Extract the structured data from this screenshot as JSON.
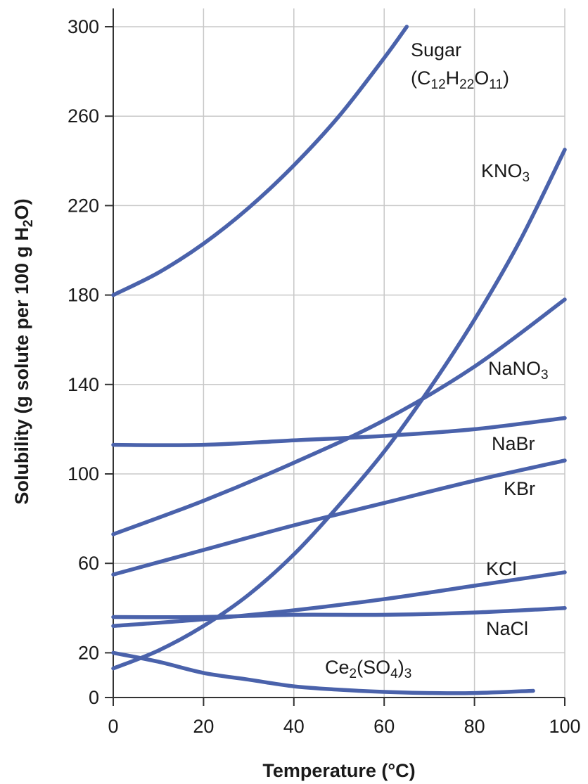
{
  "chart_data": {
    "type": "line",
    "title": "",
    "xlabel": "Temperature (°C)",
    "ylabel": "Solubility (g solute per 100 g H2O)",
    "ylabel_parts": [
      {
        "text": "Solubility (g solute per 100 g H",
        "sub": false
      },
      {
        "text": "2",
        "sub": true
      },
      {
        "text": "O)",
        "sub": false
      }
    ],
    "xlim": [
      0,
      100
    ],
    "ylim": [
      0,
      308
    ],
    "xticks": [
      0,
      20,
      40,
      60,
      80,
      100
    ],
    "yticks": [
      0,
      20,
      60,
      100,
      140,
      180,
      220,
      260,
      300
    ],
    "grid": true,
    "line_color": "#4a62ab",
    "series": [
      {
        "name": "Sugar (C12H22O11)",
        "label_lines": [
          [
            {
              "text": "Sugar",
              "sub": false
            }
          ],
          [
            {
              "text": "(C",
              "sub": false
            },
            {
              "text": "12",
              "sub": true
            },
            {
              "text": "H",
              "sub": false
            },
            {
              "text": "22",
              "sub": true
            },
            {
              "text": "O",
              "sub": false
            },
            {
              "text": "11",
              "sub": true
            },
            {
              "text": ")",
              "sub": false
            }
          ]
        ],
        "x": [
          0,
          10,
          20,
          30,
          40,
          50,
          60,
          65
        ],
        "y": [
          180,
          190,
          203,
          219,
          238,
          260,
          286,
          300
        ]
      },
      {
        "name": "KNO3",
        "label_lines": [
          [
            {
              "text": "KNO",
              "sub": false
            },
            {
              "text": "3",
              "sub": true
            }
          ]
        ],
        "x": [
          0,
          10,
          20,
          30,
          40,
          50,
          60,
          70,
          80,
          90,
          100
        ],
        "y": [
          13,
          21,
          32,
          46,
          64,
          86,
          110,
          138,
          169,
          204,
          245
        ]
      },
      {
        "name": "NaNO3",
        "label_lines": [
          [
            {
              "text": "NaNO",
              "sub": false
            },
            {
              "text": "3",
              "sub": true
            }
          ]
        ],
        "x": [
          0,
          20,
          40,
          60,
          80,
          100
        ],
        "y": [
          73,
          88,
          105,
          124,
          148,
          178
        ]
      },
      {
        "name": "NaBr",
        "label_lines": [
          [
            {
              "text": "NaBr",
              "sub": false
            }
          ]
        ],
        "x": [
          0,
          20,
          40,
          60,
          80,
          100
        ],
        "y": [
          113,
          113,
          115,
          117,
          120,
          125
        ]
      },
      {
        "name": "KBr",
        "label_lines": [
          [
            {
              "text": "KBr",
              "sub": false
            }
          ]
        ],
        "x": [
          0,
          20,
          40,
          60,
          80,
          100
        ],
        "y": [
          55,
          66,
          77,
          87,
          97,
          106
        ]
      },
      {
        "name": "KCl",
        "label_lines": [
          [
            {
              "text": "KCl",
              "sub": false
            }
          ]
        ],
        "x": [
          0,
          20,
          40,
          60,
          80,
          100
        ],
        "y": [
          32,
          35,
          39,
          44,
          50,
          56
        ]
      },
      {
        "name": "NaCl",
        "label_lines": [
          [
            {
              "text": "NaCl",
              "sub": false
            }
          ]
        ],
        "x": [
          0,
          20,
          40,
          60,
          80,
          100
        ],
        "y": [
          36,
          36,
          37,
          37,
          38,
          40
        ]
      },
      {
        "name": "Ce2(SO4)3",
        "label_lines": [
          [
            {
              "text": "Ce",
              "sub": false
            },
            {
              "text": "2",
              "sub": true
            },
            {
              "text": "(SO",
              "sub": false
            },
            {
              "text": "4",
              "sub": true
            },
            {
              "text": ")",
              "sub": false
            },
            {
              "text": "3",
              "sub": true
            }
          ]
        ],
        "x": [
          0,
          10,
          20,
          30,
          40,
          50,
          60,
          70,
          80,
          93
        ],
        "y": [
          20,
          16,
          11,
          8,
          5,
          3.5,
          2.5,
          2,
          2,
          3
        ]
      }
    ]
  }
}
